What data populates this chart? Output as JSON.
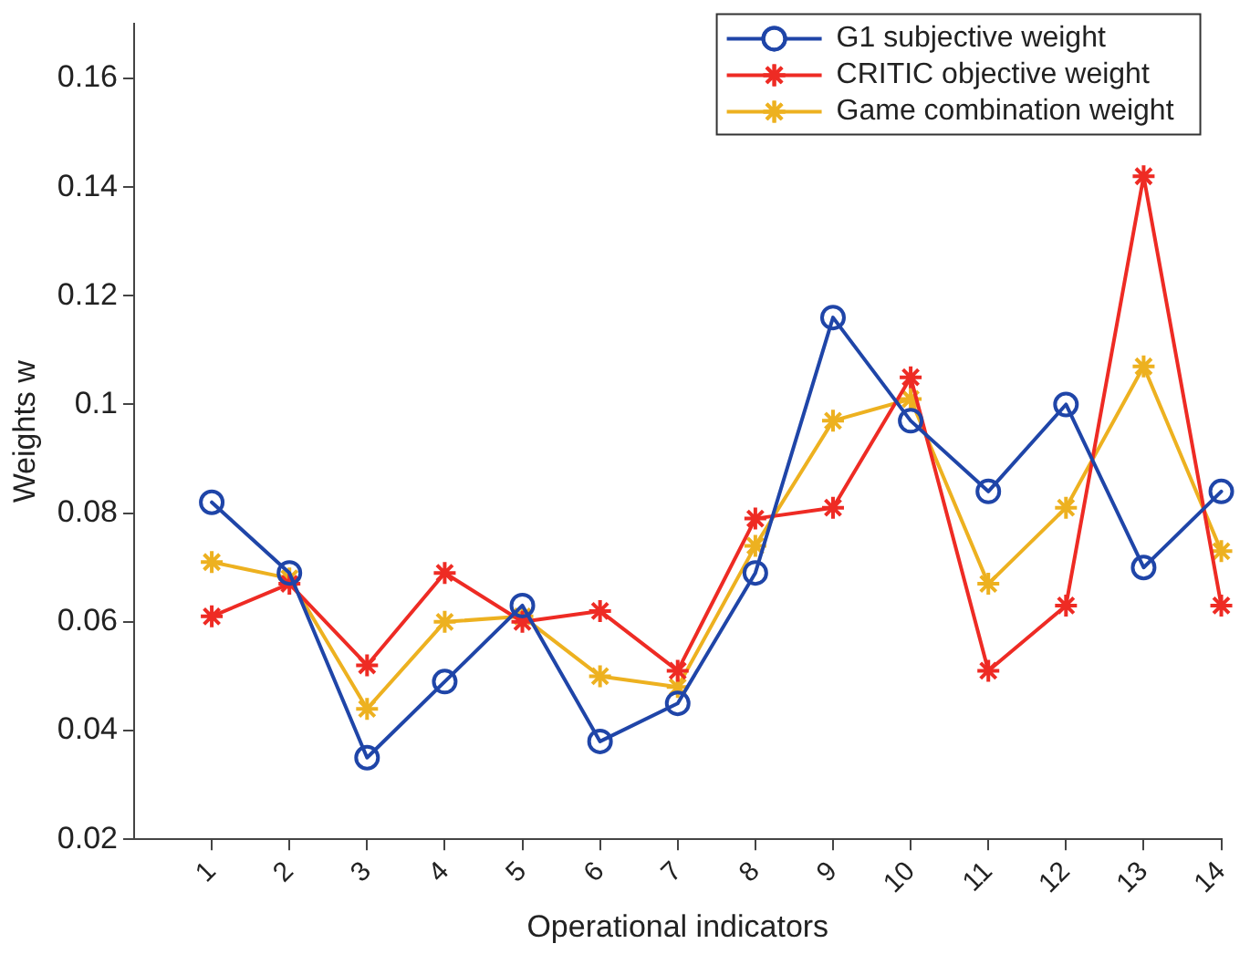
{
  "chart_data": {
    "type": "line",
    "xlabel": "Operational indicators",
    "ylabel": "Weights w",
    "x": [
      1,
      2,
      3,
      4,
      5,
      6,
      7,
      8,
      9,
      10,
      11,
      12,
      13,
      14
    ],
    "xlim": [
      0,
      14
    ],
    "xticks": [
      1,
      2,
      3,
      4,
      5,
      6,
      7,
      8,
      9,
      10,
      11,
      12,
      13,
      14
    ],
    "ylim": [
      0.02,
      0.17
    ],
    "yticks": [
      0.02,
      0.04,
      0.06,
      0.08,
      {
        "value": 0.1,
        "label": "0.1"
      },
      0.12,
      0.14,
      0.16
    ],
    "grid": false,
    "legend": "top right",
    "line_style": "solid",
    "series": [
      {
        "name": "G1 subjective weight",
        "color": "#1f45a8",
        "marker": "circle",
        "values": [
          0.082,
          0.069,
          0.035,
          0.049,
          0.063,
          0.038,
          0.045,
          0.069,
          0.116,
          0.097,
          0.084,
          0.1,
          0.07,
          0.084
        ]
      },
      {
        "name": "CRITIC objective weight",
        "color": "#ee2b24",
        "marker": "cross",
        "values": [
          0.061,
          0.067,
          0.052,
          0.069,
          0.06,
          0.062,
          0.051,
          0.079,
          0.081,
          0.105,
          0.051,
          0.063,
          0.142,
          0.063
        ]
      },
      {
        "name": "Game combination weight",
        "color": "#edb120",
        "marker": "cross",
        "values": [
          0.071,
          0.068,
          0.044,
          0.06,
          0.061,
          0.05,
          0.048,
          0.074,
          0.097,
          0.101,
          0.067,
          0.081,
          0.107,
          0.073
        ]
      }
    ]
  }
}
